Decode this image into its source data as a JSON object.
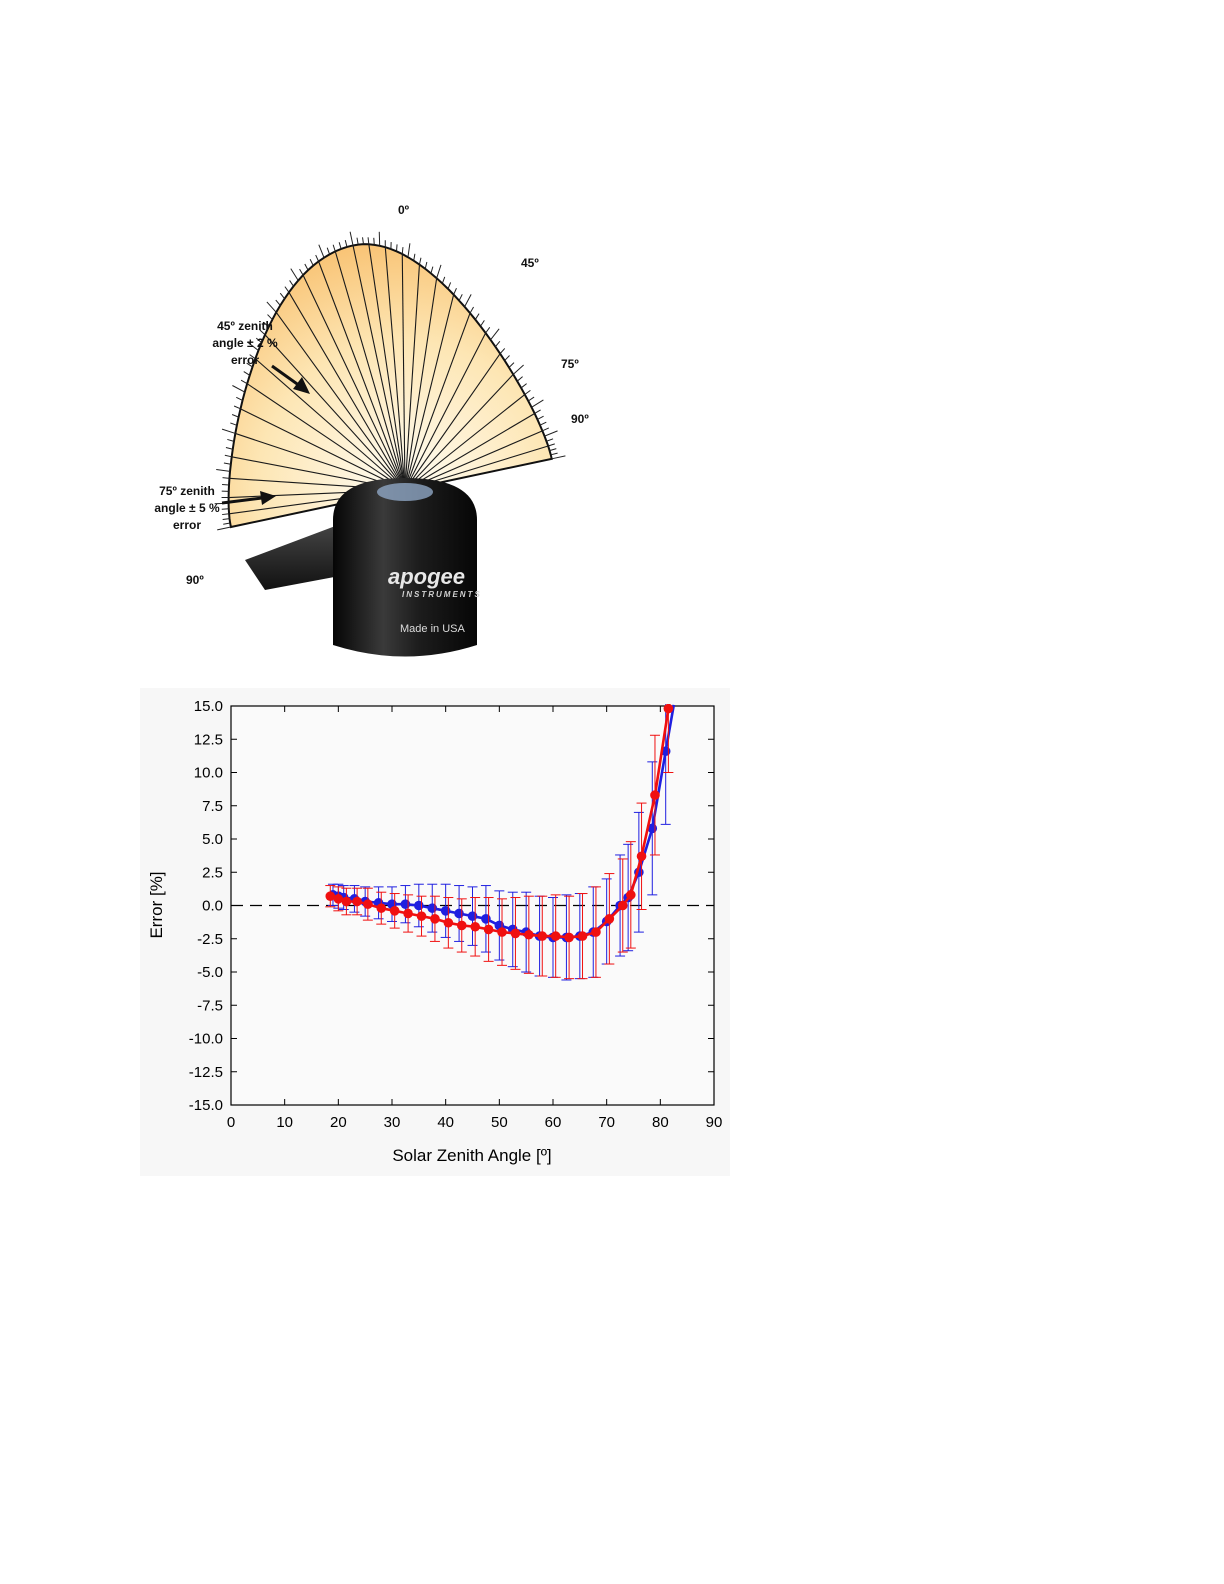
{
  "diagram": {
    "angle_labels": {
      "zero": "0º",
      "forty_five": "45º",
      "seventy_five": "75º",
      "ninety_right": "90º",
      "ninety_left": "90º"
    },
    "callout_45": [
      "45º zenith",
      "angle ± 2 %",
      "error"
    ],
    "callout_75": [
      "75º zenith",
      "angle ± 5 %",
      "error"
    ],
    "brand": "apogee",
    "brand_sub": "INSTRUMENTS",
    "made_in": "Made in USA",
    "colors": {
      "fan_inner": "#fff8e6",
      "fan_outer": "#f5a843",
      "sensor_body": "#1a1a1a"
    }
  },
  "chart_data": {
    "type": "line",
    "xlabel": "Solar Zenith Angle [º]",
    "ylabel": "Error [%]",
    "xlim": [
      0,
      90
    ],
    "ylim": [
      -15,
      15
    ],
    "xticks": [
      "0",
      "10",
      "20",
      "30",
      "40",
      "50",
      "60",
      "70",
      "80",
      "90"
    ],
    "yticks": [
      "15.0",
      "12.5",
      "10.0",
      "7.5",
      "5.0",
      "2.5",
      "0.0",
      "-2.5",
      "-5.0",
      "-7.5",
      "-10.0",
      "-12.5",
      "-15.0"
    ],
    "reference_line": 0,
    "series": [
      {
        "color": "#1f1fe0",
        "x": [
          19,
          20,
          21,
          23,
          25,
          27.5,
          30,
          32.5,
          35,
          37.5,
          40,
          42.5,
          45,
          47.5,
          50,
          52.5,
          55,
          57.5,
          60,
          62.5,
          65,
          67.5,
          70,
          72.5,
          74,
          76,
          78.5,
          81
        ],
        "y": [
          0.8,
          0.7,
          0.6,
          0.5,
          0.3,
          0.2,
          0.1,
          0.1,
          0.0,
          -0.2,
          -0.4,
          -0.6,
          -0.8,
          -1.0,
          -1.5,
          -1.8,
          -2.0,
          -2.3,
          -2.4,
          -2.4,
          -2.3,
          -2.0,
          -1.2,
          0.0,
          0.6,
          2.5,
          5.8,
          11.6
        ],
        "err": [
          0.8,
          0.9,
          0.9,
          1.0,
          1.1,
          1.2,
          1.3,
          1.4,
          1.6,
          1.8,
          2.0,
          2.1,
          2.2,
          2.5,
          2.6,
          2.8,
          3.0,
          3.0,
          3.0,
          3.2,
          3.2,
          3.4,
          3.2,
          3.8,
          4.0,
          4.5,
          5.0,
          5.5
        ]
      },
      {
        "color": "#f01010",
        "x": [
          18.5,
          20,
          21.5,
          23.5,
          25.5,
          28,
          30.5,
          33,
          35.5,
          38,
          40.5,
          43,
          45.5,
          48,
          50.5,
          53,
          55.5,
          58,
          60.5,
          63,
          65.5,
          68,
          70.5,
          73,
          74.5,
          76.5,
          79,
          81.5
        ],
        "y": [
          0.7,
          0.5,
          0.3,
          0.3,
          0.1,
          -0.2,
          -0.4,
          -0.6,
          -0.8,
          -1.0,
          -1.3,
          -1.5,
          -1.6,
          -1.8,
          -2.0,
          -2.1,
          -2.2,
          -2.3,
          -2.3,
          -2.4,
          -2.3,
          -2.0,
          -1.0,
          0.0,
          0.8,
          3.7,
          8.3,
          14.8
        ],
        "err": [
          0.8,
          0.9,
          1.0,
          1.0,
          1.2,
          1.2,
          1.3,
          1.4,
          1.5,
          1.7,
          1.9,
          2.0,
          2.2,
          2.4,
          2.5,
          2.7,
          2.9,
          3.0,
          3.1,
          3.1,
          3.2,
          3.4,
          3.4,
          3.5,
          4.0,
          4.0,
          4.5,
          4.8
        ]
      }
    ]
  }
}
